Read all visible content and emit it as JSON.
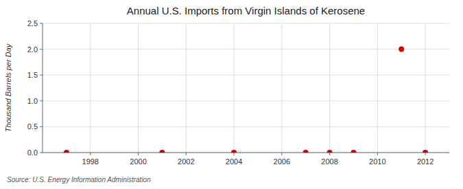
{
  "chart_data": {
    "type": "scatter",
    "title": "Annual U.S. Imports from Virgin Islands of Kerosene",
    "ylabel": "Thousand Barrels per Day",
    "source": "Source: U.S. Energy Information Administration",
    "x": [
      1997,
      2001,
      2004,
      2007,
      2008,
      2009,
      2011,
      2012
    ],
    "values": [
      0.0,
      0.0,
      0.0,
      0.0,
      0.0,
      0.0,
      2.0,
      0.0
    ],
    "color": "#cc0000",
    "xlim": [
      1996.0,
      2013.0
    ],
    "ylim": [
      0.0,
      2.5
    ],
    "xticks": [
      1998,
      2000,
      2002,
      2004,
      2006,
      2008,
      2010,
      2012
    ],
    "yticks": [
      {
        "value": 0.0,
        "label": "0.0"
      },
      0.5,
      {
        "value": 1.0,
        "label": "1.0"
      },
      1.5,
      {
        "value": 2.0,
        "label": "2.0"
      },
      2.5
    ],
    "grid": true
  }
}
